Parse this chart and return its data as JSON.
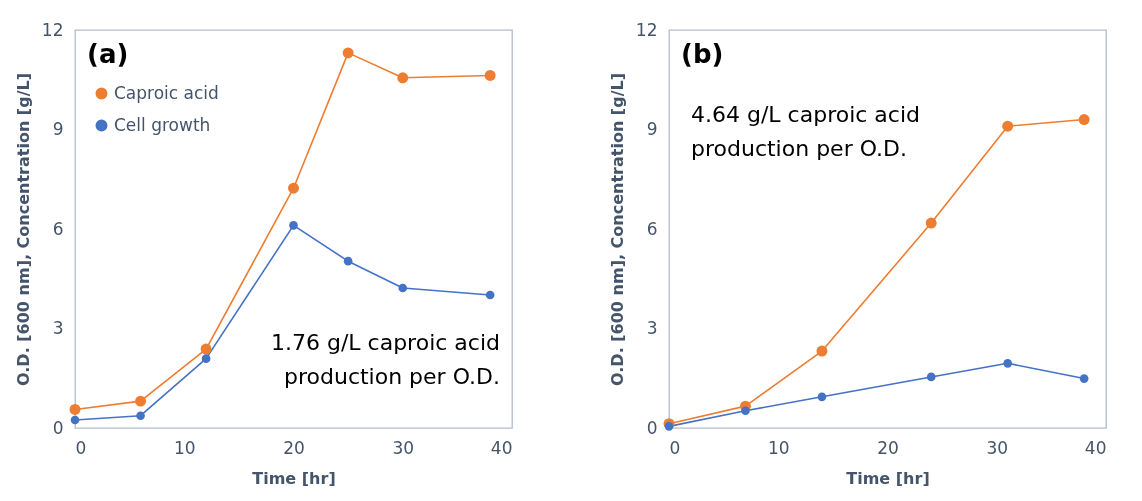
{
  "chart_data": [
    {
      "type": "line",
      "title": "(a)",
      "xlabel": "Time [hr]",
      "ylabel": "O.D. [600 nm], Concentration [g/L]",
      "x": [
        0,
        6,
        12,
        20,
        25,
        30,
        38
      ],
      "series": [
        {
          "name": "Caproic acid",
          "color": "#ed7d31",
          "values": [
            0.56,
            0.81,
            2.38,
            7.23,
            11.31,
            10.56,
            10.63
          ]
        },
        {
          "name": "Cell growth",
          "color": "#4472c4",
          "values": [
            0.24,
            0.37,
            2.09,
            6.11,
            5.03,
            4.22,
            4.01
          ]
        }
      ],
      "annotations": [
        "1.76 g/L caproic acid production per O.D."
      ],
      "xlim": [
        0,
        40
      ],
      "xticks": [
        0,
        10,
        20,
        30,
        40
      ],
      "ylim": [
        0,
        12
      ],
      "yticks": [
        0,
        3,
        6,
        9,
        12
      ],
      "grid": false,
      "legend": "top left",
      "marker": "circle",
      "line_style": "solid"
    },
    {
      "type": "line",
      "title": "(b)",
      "xlabel": "Time [hr]",
      "ylabel": "O.D. [600 nm], Concentration [g/L]",
      "x": [
        0,
        7,
        14,
        24,
        31,
        38
      ],
      "series": [
        {
          "name": "Caproic acid",
          "color": "#ed7d31",
          "values": [
            0.13,
            0.66,
            2.32,
            6.18,
            9.1,
            9.3
          ]
        },
        {
          "name": "Cell growth",
          "color": "#4472c4",
          "values": [
            0.05,
            0.52,
            0.94,
            1.54,
            1.95,
            1.49
          ]
        }
      ],
      "annotations": [
        "4.64 g/L caproic acid production per O.D."
      ],
      "xlim": [
        0,
        40
      ],
      "xticks": [
        0,
        10,
        20,
        30,
        40
      ],
      "ylim": [
        0,
        12
      ],
      "yticks": [
        0,
        3,
        6,
        9,
        12
      ],
      "grid": false,
      "legend": "right",
      "marker": "circle",
      "line_style": "solid"
    }
  ]
}
